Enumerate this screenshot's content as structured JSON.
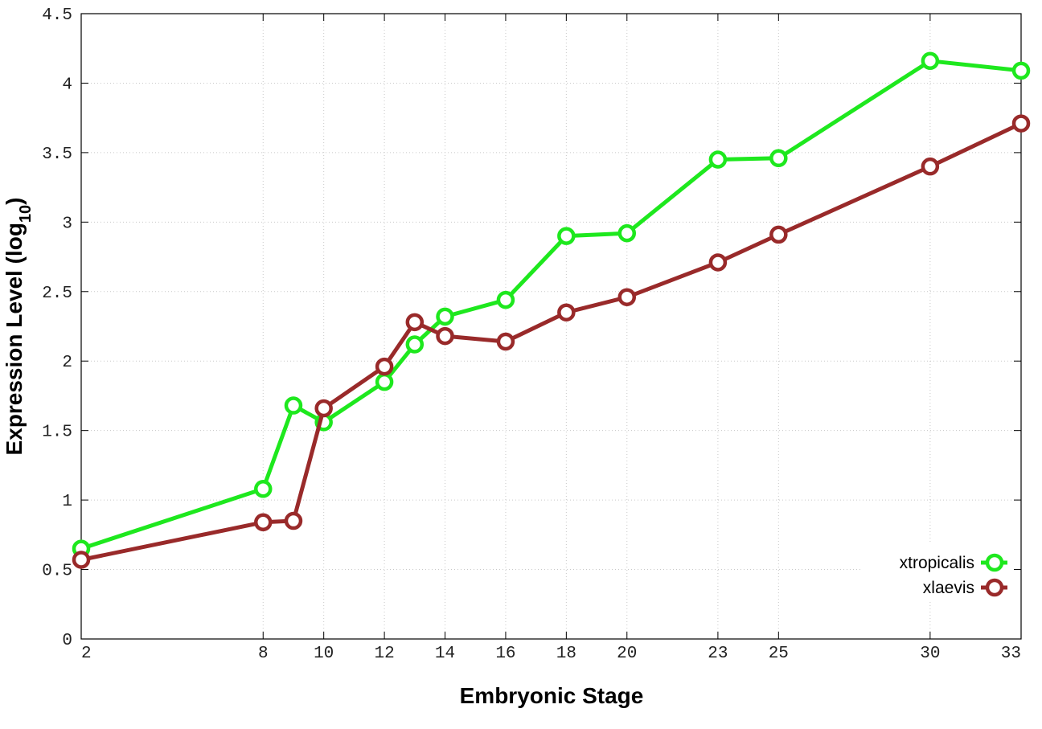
{
  "chart_data": {
    "type": "line",
    "title": "",
    "xlabel": "Embryonic Stage",
    "ylabel_main": "Expression Level (log",
    "ylabel_sub": "10",
    "ylabel_close": ")",
    "x": [
      2,
      8,
      9,
      10,
      12,
      13,
      14,
      16,
      18,
      20,
      23,
      25,
      30,
      33
    ],
    "xticks": [
      2,
      8,
      10,
      12,
      14,
      16,
      18,
      20,
      23,
      25,
      30,
      33
    ],
    "xtick_labels": [
      "2",
      "8",
      "10",
      "12",
      "14",
      "16",
      "18",
      "20",
      "23",
      "25",
      "30",
      "33"
    ],
    "xlim": [
      2,
      33
    ],
    "ylim": [
      0,
      4.5
    ],
    "yticks": [
      0,
      0.5,
      1,
      1.5,
      2,
      2.5,
      3,
      3.5,
      4,
      4.5
    ],
    "ytick_labels": [
      "0",
      "0.5",
      "1",
      "1.5",
      "2",
      "2.5",
      "3",
      "3.5",
      "4",
      "4.5"
    ],
    "grid": true,
    "legend_position": "bottom-right",
    "series": [
      {
        "name": "xtropicalis",
        "color": "#1ee81e",
        "values": [
          0.65,
          1.08,
          1.68,
          1.56,
          1.85,
          2.12,
          2.32,
          2.44,
          2.9,
          2.92,
          3.45,
          3.46,
          4.16,
          4.09
        ]
      },
      {
        "name": "xlaevis",
        "color": "#992a2a",
        "values": [
          0.57,
          0.84,
          0.85,
          1.66,
          1.96,
          2.28,
          2.18,
          2.14,
          2.35,
          2.46,
          2.71,
          2.91,
          3.4,
          3.71
        ]
      }
    ]
  }
}
